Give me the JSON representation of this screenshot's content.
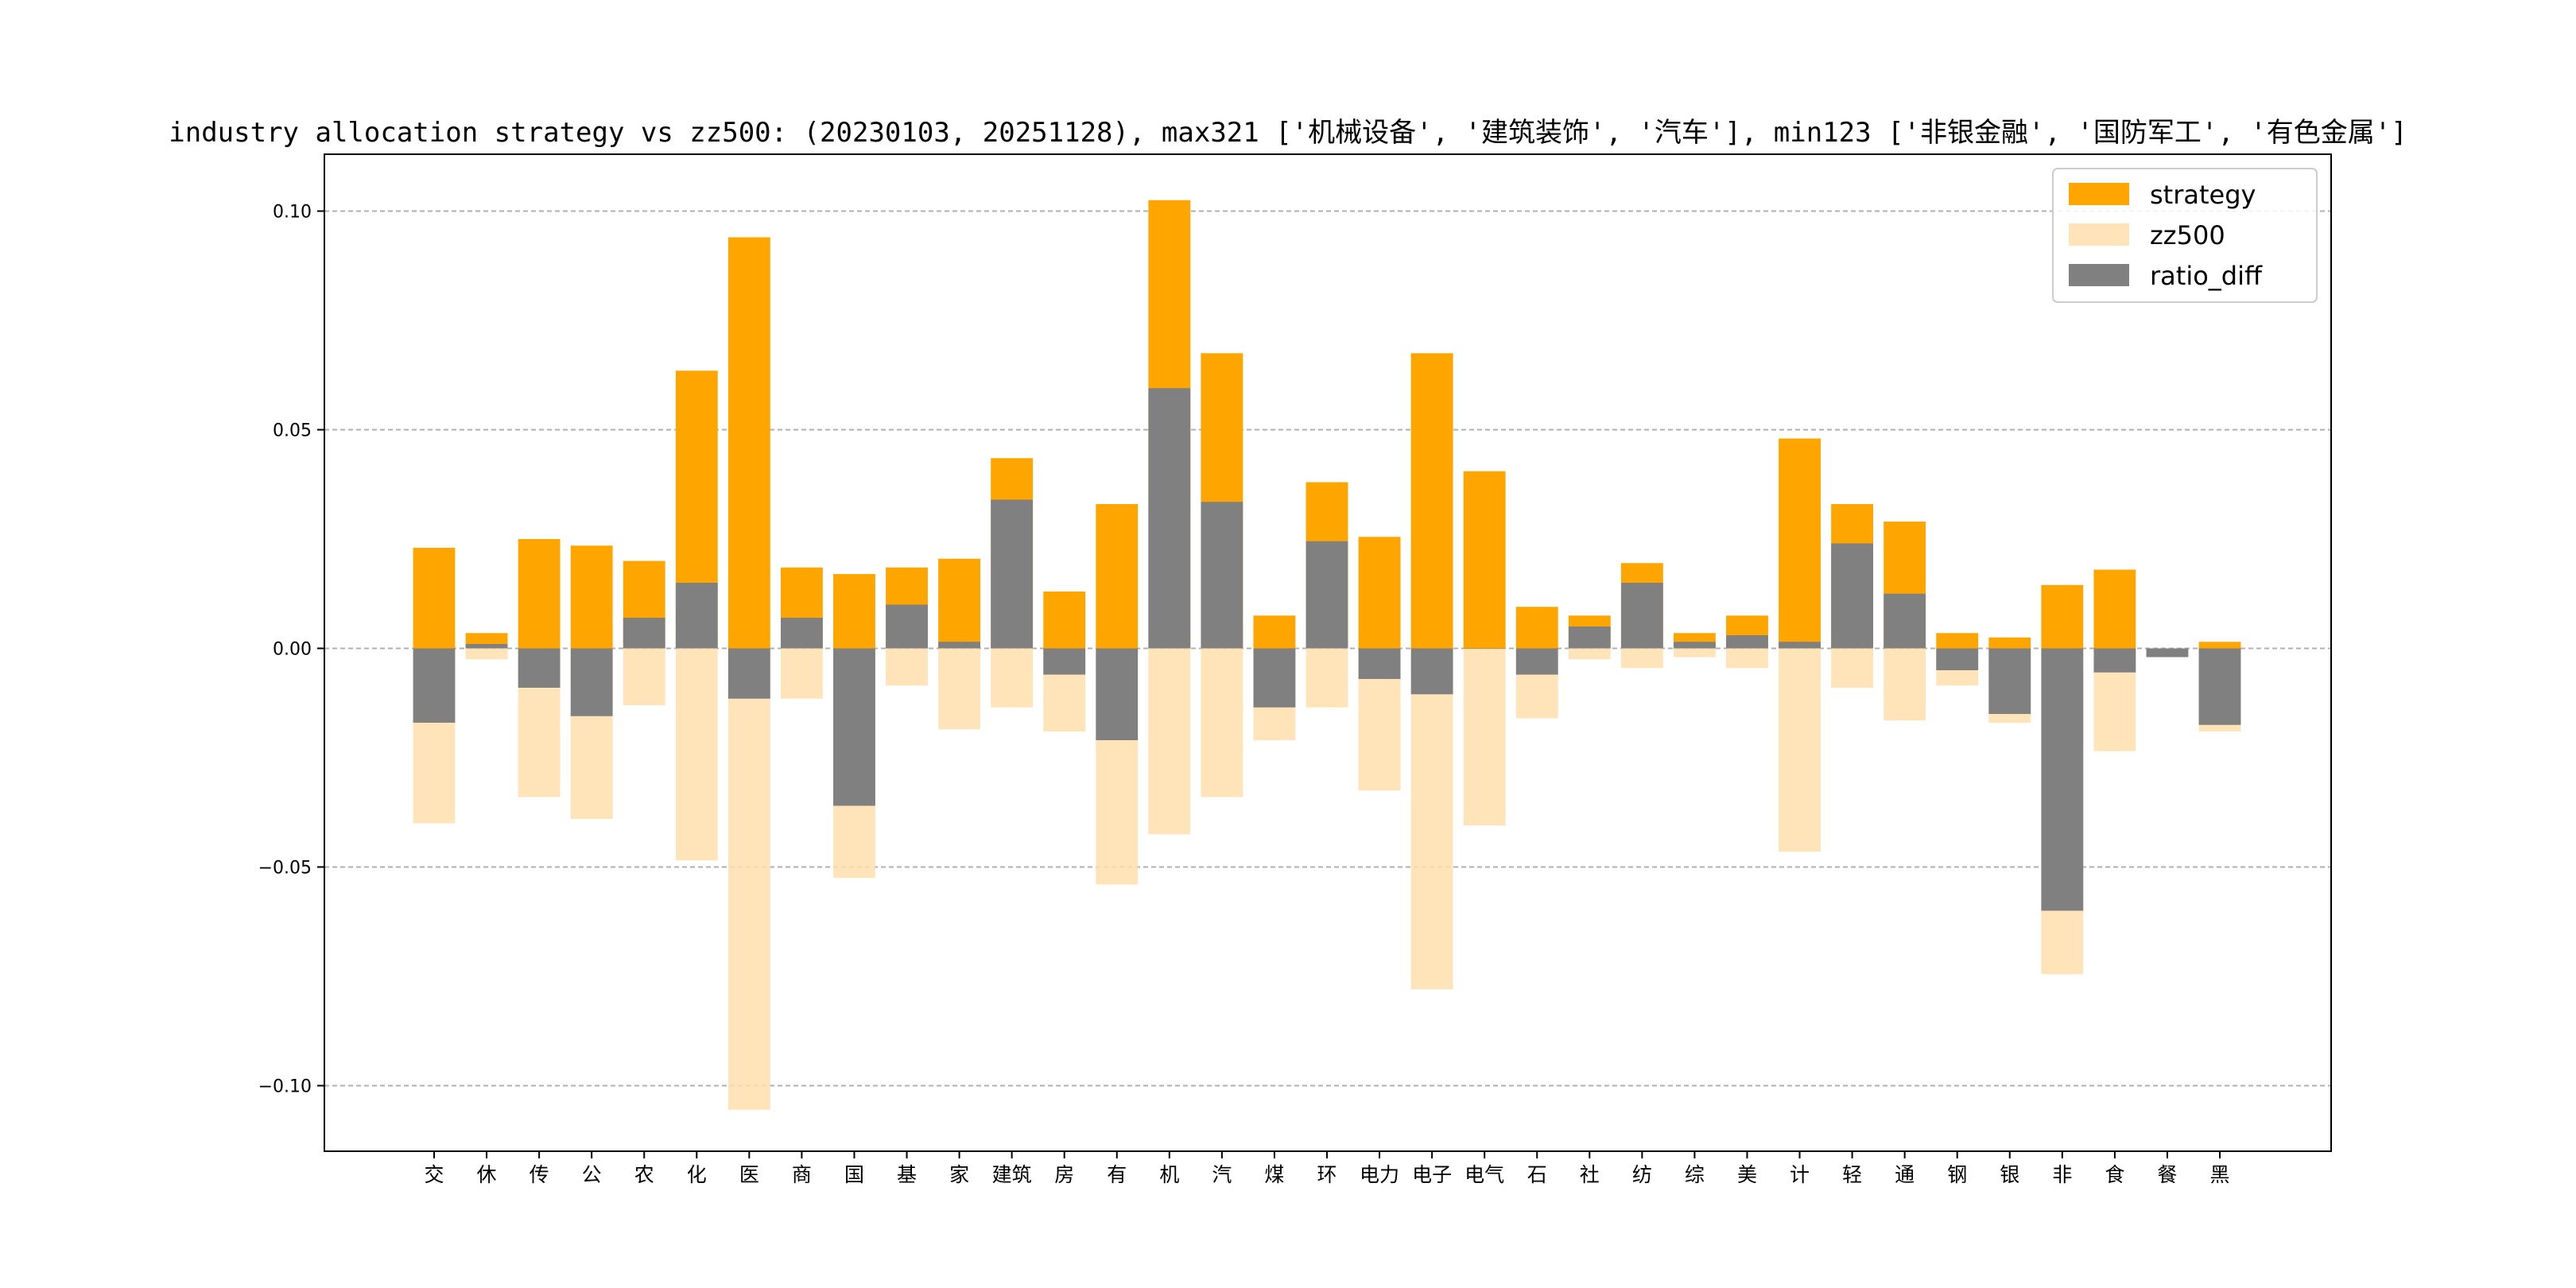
{
  "chart_data": {
    "type": "bar",
    "title": "industry allocation strategy vs zz500: (20230103, 20251128), max321 ['机械设备', '建筑装饰', '汽车'], min123 ['非银金融', '国防军工', '有色金属']",
    "xlabel": "",
    "ylabel": "",
    "ylim": [
      -0.115,
      0.113
    ],
    "yticks": [
      0.1,
      0.05,
      0.0,
      -0.05,
      -0.1
    ],
    "ytick_labels": [
      "0.10",
      "0.05",
      "0.00",
      "−0.05",
      "−0.10"
    ],
    "grid": "horizontal dashed",
    "legend_position": "upper-right",
    "categories": [
      "交",
      "休",
      "传",
      "公",
      "农",
      "化",
      "医",
      "商",
      "国",
      "基",
      "家",
      "建筑",
      "房",
      "有",
      "机",
      "汽",
      "煤",
      "环",
      "电力",
      "电子",
      "电气",
      "石",
      "社",
      "纺",
      "综",
      "美",
      "计",
      "轻",
      "通",
      "钢",
      "银",
      "非",
      "食",
      "餐",
      "黑"
    ],
    "series": [
      {
        "name": "strategy",
        "color": "#FFA500",
        "values": [
          0.023,
          0.0035,
          0.025,
          0.0235,
          0.02,
          0.0635,
          0.094,
          0.0185,
          0.017,
          0.0185,
          0.0205,
          0.0435,
          0.013,
          0.033,
          0.1025,
          0.0675,
          0.0075,
          0.038,
          0.0255,
          0.0675,
          0.0405,
          0.0095,
          0.0075,
          0.0195,
          0.0035,
          0.0075,
          0.048,
          0.033,
          0.029,
          0.0035,
          0.0025,
          0.0145,
          0.018,
          0.0,
          0.0015
        ]
      },
      {
        "name": "zz500",
        "color": "#FFDEAD",
        "opacity": 0.85,
        "values": [
          -0.04,
          -0.0025,
          -0.034,
          -0.039,
          -0.013,
          -0.0485,
          -0.1055,
          -0.0115,
          -0.0525,
          -0.0085,
          -0.0185,
          -0.0135,
          -0.019,
          -0.054,
          -0.0425,
          -0.034,
          -0.021,
          -0.0135,
          -0.0325,
          -0.078,
          -0.0405,
          -0.016,
          -0.0025,
          -0.0045,
          -0.002,
          -0.0045,
          -0.0465,
          -0.009,
          -0.0165,
          -0.0085,
          -0.017,
          -0.0745,
          -0.0235,
          -0.001,
          -0.019
        ]
      },
      {
        "name": "ratio_diff",
        "color": "#808080",
        "values": [
          -0.017,
          0.001,
          -0.009,
          -0.0155,
          0.007,
          0.015,
          -0.0115,
          0.007,
          -0.036,
          0.01,
          0.0015,
          0.034,
          -0.006,
          -0.021,
          0.0595,
          0.0335,
          -0.0135,
          0.0245,
          -0.007,
          -0.0105,
          0.0,
          -0.006,
          0.005,
          0.015,
          0.0015,
          0.003,
          0.0015,
          0.024,
          0.0125,
          -0.005,
          -0.015,
          -0.06,
          -0.0055,
          -0.002,
          -0.0175
        ]
      }
    ]
  }
}
